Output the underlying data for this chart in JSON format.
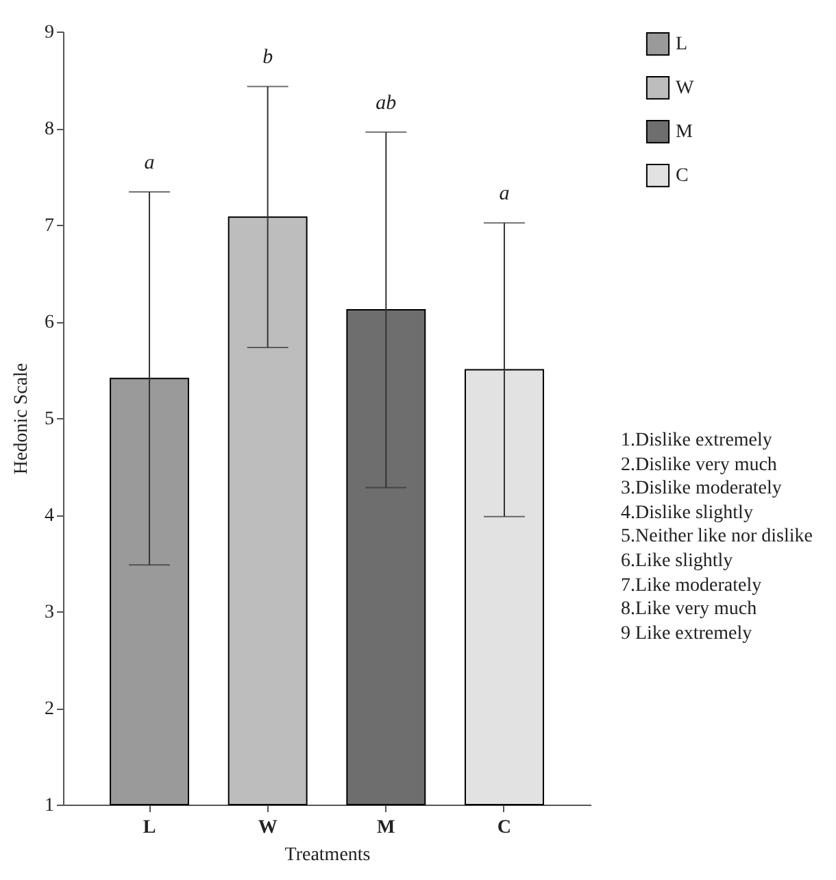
{
  "chart_data": {
    "type": "bar",
    "xlabel": "Treatments",
    "ylabel": "Hedonic Scale",
    "categories": [
      "L",
      "W",
      "M",
      "C"
    ],
    "series": [
      {
        "name": "L",
        "color": "#9a9a9a",
        "values": [
          5.41,
          null,
          null,
          null
        ],
        "errors": [
          1.93,
          null,
          null,
          null
        ]
      },
      {
        "name": "W",
        "color": "#bdbdbd",
        "values": [
          null,
          7.08,
          null,
          null
        ],
        "errors": [
          null,
          1.35,
          null,
          null
        ]
      },
      {
        "name": "M",
        "color": "#6e6e6e",
        "values": [
          null,
          null,
          6.12,
          null
        ],
        "errors": [
          null,
          null,
          1.84,
          null
        ]
      },
      {
        "name": "C",
        "color": "#e2e2e2",
        "values": [
          null,
          null,
          null,
          5.5
        ],
        "errors": [
          null,
          null,
          null,
          1.52
        ]
      }
    ],
    "ylim": [
      1,
      9
    ],
    "yticks": [
      1,
      2,
      3,
      4,
      5,
      6,
      7,
      8,
      9
    ],
    "legend": "top right",
    "annotations": [
      "a",
      "b",
      "ab",
      "a",
      "1.Dislike extremely",
      "2.Dislike very much",
      "3.Dislike moderately",
      "4.Dislike slightly",
      "5.Neither like nor dislike",
      "6.Like slightly",
      "7.Like moderately",
      "8.Like very much",
      "9 Like extremely"
    ]
  }
}
